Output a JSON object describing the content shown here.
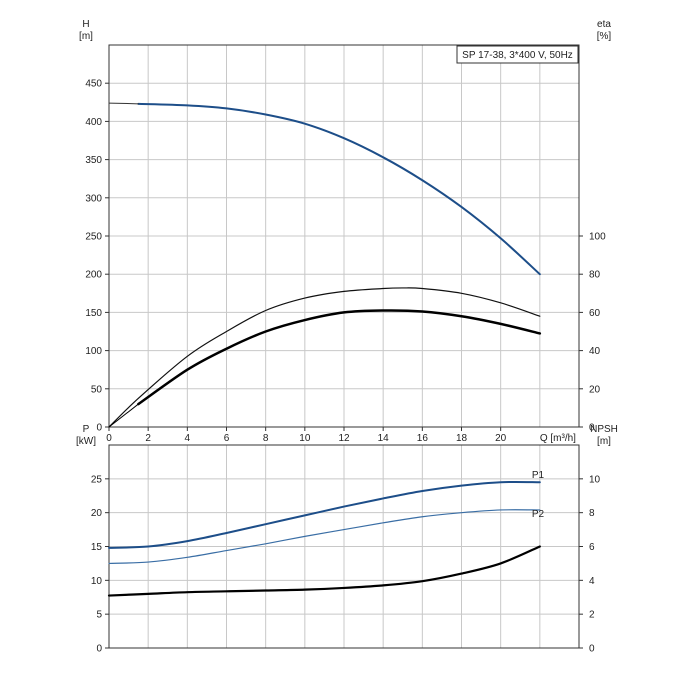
{
  "chart_data": [
    {
      "type": "line",
      "panel": "head-efficiency",
      "title": "SP 17-38, 3*400 V, 50Hz",
      "ylabel": "H",
      "yunit": "[m]",
      "y2label": "eta",
      "y2unit": "[%]",
      "xlabel": "Q [m³/h]",
      "xlim": [
        0,
        24
      ],
      "ylim": [
        0,
        500
      ],
      "y2lim": [
        0,
        200
      ],
      "xticks": [
        0,
        2,
        4,
        6,
        8,
        10,
        12,
        14,
        16,
        18,
        20
      ],
      "xtick_labels": [
        "0",
        "2",
        "4",
        "6",
        "8",
        "10",
        "12",
        "14",
        "16",
        "18",
        "20"
      ],
      "yticks": [
        0,
        50,
        100,
        150,
        200,
        250,
        300,
        350,
        400,
        450
      ],
      "ytick_labels": [
        "0",
        "50",
        "100",
        "150",
        "200",
        "250",
        "300",
        "350",
        "400",
        "450"
      ],
      "y2ticks": [
        0,
        20,
        40,
        60,
        80,
        100
      ],
      "y2tick_labels": [
        "0",
        "20",
        "40",
        "60",
        "80",
        "100"
      ],
      "grid": true,
      "series": [
        {
          "axis": "y",
          "color": "#1d4e89",
          "width": 2,
          "x": [
            1.5,
            4,
            6,
            8,
            10,
            12,
            14,
            16,
            18,
            20,
            22
          ],
          "y": [
            423,
            421,
            417,
            409,
            397,
            378,
            353,
            323,
            288,
            247,
            200
          ]
        },
        {
          "axis": "y",
          "color": "#333333",
          "width": 1,
          "x": [
            0,
            1.5
          ],
          "y": [
            424,
            423
          ]
        },
        {
          "axis": "y2",
          "color": "#111111",
          "width": 1.2,
          "x": [
            0,
            1.5,
            4,
            6,
            8,
            10,
            12,
            14,
            15,
            16,
            18,
            20,
            22
          ],
          "y2": [
            0,
            15,
            37,
            50,
            61,
            67.5,
            71,
            72.5,
            72.8,
            72.5,
            70,
            65,
            58
          ]
        },
        {
          "axis": "y2",
          "color": "#000000",
          "width": 2.5,
          "x": [
            1.5,
            4,
            6,
            8,
            10,
            12,
            14,
            16,
            18,
            20,
            22
          ],
          "y2": [
            12,
            30,
            41,
            50,
            56,
            60,
            61,
            60.5,
            58,
            54,
            49
          ]
        },
        {
          "axis": "y2",
          "color": "#000000",
          "width": 1,
          "x": [
            0,
            1.5
          ],
          "y2": [
            0,
            12
          ]
        }
      ]
    },
    {
      "type": "line",
      "panel": "power-npsh",
      "ylabel": "P",
      "yunit": "[kW]",
      "y2label": "NPSH",
      "y2unit": "[m]",
      "xlim": [
        0,
        24
      ],
      "ylim": [
        0,
        30
      ],
      "y2lim": [
        0,
        12
      ],
      "yticks": [
        0,
        5,
        10,
        15,
        20,
        25
      ],
      "ytick_labels": [
        "0",
        "5",
        "10",
        "15",
        "20",
        "25"
      ],
      "y2ticks": [
        0,
        2,
        4,
        6,
        8,
        10
      ],
      "y2tick_labels": [
        "0",
        "2",
        "4",
        "6",
        "8",
        "10"
      ],
      "grid": true,
      "series": [
        {
          "name": "P1",
          "axis": "y",
          "color": "#1d4e89",
          "width": 2,
          "x": [
            0,
            2,
            4,
            6,
            8,
            10,
            12,
            14,
            16,
            18,
            20,
            22
          ],
          "y": [
            14.8,
            15.0,
            15.8,
            17.0,
            18.3,
            19.6,
            20.9,
            22.1,
            23.2,
            24.0,
            24.5,
            24.5
          ]
        },
        {
          "name": "P2",
          "axis": "y",
          "color": "#3a6ea5",
          "width": 1.2,
          "x": [
            0,
            2,
            4,
            6,
            8,
            10,
            12,
            14,
            16,
            18,
            20,
            22
          ],
          "y": [
            12.5,
            12.7,
            13.4,
            14.4,
            15.4,
            16.5,
            17.5,
            18.5,
            19.4,
            20.0,
            20.4,
            20.4
          ]
        },
        {
          "axis": "y2",
          "color": "#000000",
          "width": 2.2,
          "x": [
            0,
            2,
            4,
            6,
            8,
            10,
            12,
            14,
            16,
            18,
            20,
            22
          ],
          "y2": [
            3.1,
            3.2,
            3.3,
            3.35,
            3.4,
            3.45,
            3.55,
            3.7,
            3.95,
            4.4,
            5.0,
            6.0
          ]
        }
      ]
    }
  ]
}
